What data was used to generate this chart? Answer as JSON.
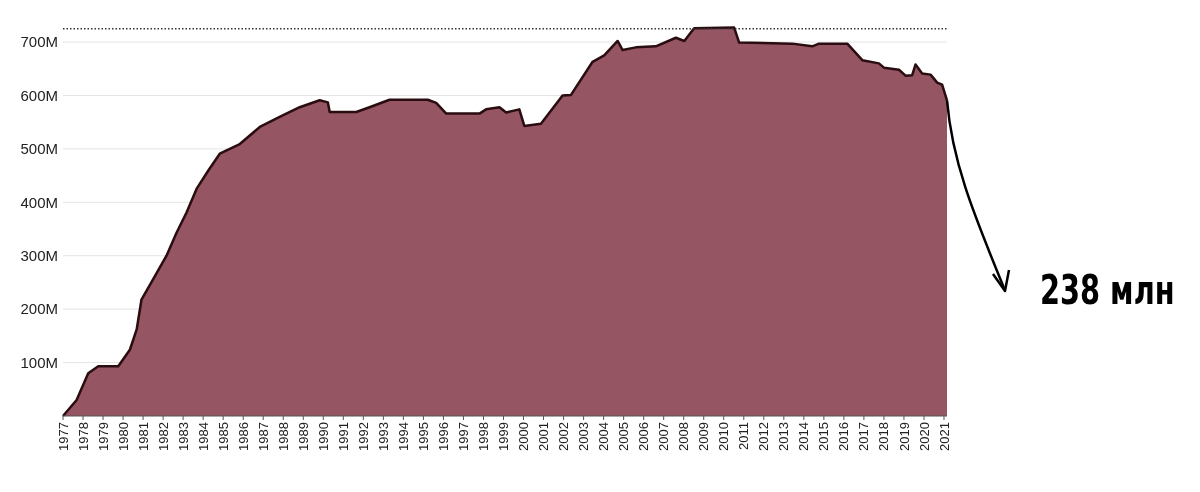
{
  "chart_data": {
    "type": "area",
    "x": [
      1977.0,
      1977.68,
      1978.26,
      1978.76,
      1979.76,
      1980.34,
      1980.68,
      1980.92,
      1981.59,
      1982.17,
      1982.67,
      1983.17,
      1983.67,
      1984.25,
      1984.83,
      1985.83,
      1986.83,
      1987.82,
      1988.82,
      1989.82,
      1990.23,
      1990.32,
      1991.65,
      1992.31,
      1993.31,
      1995.22,
      1995.64,
      1996.14,
      1997.8,
      1998.13,
      1998.8,
      1999.13,
      1999.79,
      2000.04,
      2000.87,
      2001.95,
      2002.37,
      2003.45,
      2004.03,
      2004.7,
      2004.95,
      2005.61,
      2006.61,
      2007.61,
      2008.03,
      2008.52,
      2010.52,
      2010.77,
      2013.42,
      2014.42,
      2014.76,
      2016.17,
      2016.92,
      2017.75,
      2018.0,
      2018.75,
      2019.08,
      2019.41,
      2019.58,
      2019.91,
      2020.33,
      2020.66,
      2020.91,
      2021.15
    ],
    "series": [
      {
        "color": "#955563",
        "values": [
          0,
          30,
          80,
          93,
          93,
          124,
          162,
          218,
          262,
          300,
          343,
          381,
          425,
          459,
          491,
          509,
          541,
          560,
          578,
          591,
          587,
          569,
          569,
          578,
          592,
          592,
          586,
          566,
          566,
          574,
          578,
          568,
          574,
          543,
          547,
          600,
          601,
          663,
          675,
          702,
          685,
          690,
          692,
          708,
          702,
          726,
          727,
          699,
          697,
          692,
          697,
          697,
          666,
          660,
          652,
          648,
          637,
          638,
          658,
          641,
          639,
          624,
          620,
          591
        ]
      }
    ],
    "xlim": [
      1977,
      2021.15
    ],
    "xticks": [
      1977,
      1978,
      1979,
      1980,
      1981,
      1982,
      1983,
      1984,
      1985,
      1986,
      1987,
      1988,
      1989,
      1990,
      1991,
      1992,
      1993,
      1994,
      1995,
      1996,
      1997,
      1998,
      1999,
      2000,
      2001,
      2002,
      2003,
      2004,
      2005,
      2006,
      2007,
      2008,
      2009,
      2010,
      2011,
      2012,
      2013,
      2014,
      2015,
      2016,
      2017,
      2018,
      2019,
      2020,
      2021
    ],
    "ylim": [
      0,
      730
    ],
    "yticks": [
      {
        "value": 100,
        "label": "100M"
      },
      {
        "value": 200,
        "label": "200M"
      },
      {
        "value": 300,
        "label": "300M"
      },
      {
        "value": 400,
        "label": "400M"
      },
      {
        "value": 500,
        "label": "500M"
      },
      {
        "value": 600,
        "label": "600M"
      },
      {
        "value": 700,
        "label": "700M"
      }
    ],
    "grid": "y",
    "ref_lines": [
      {
        "axis": "y",
        "value": 725,
        "color": "#333333",
        "line_style": "dotted"
      }
    ],
    "annotations": [
      "238 млн"
    ]
  }
}
